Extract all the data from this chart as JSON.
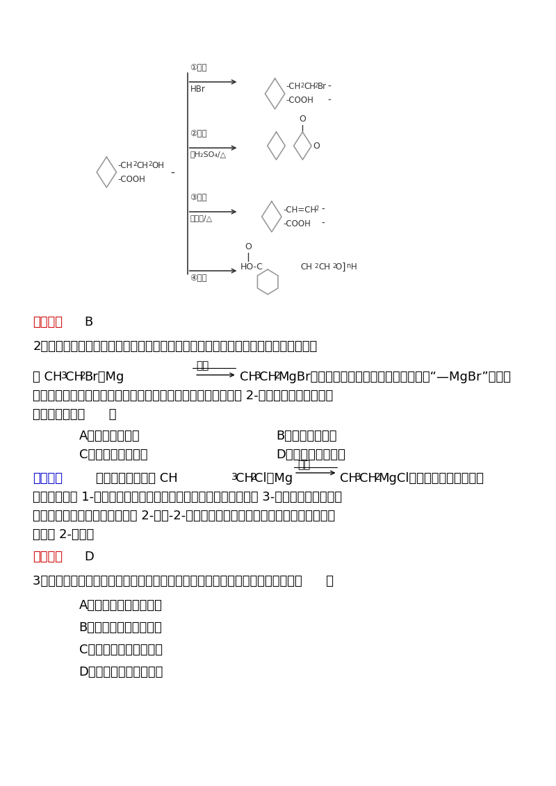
{
  "bg_color": "#ffffff",
  "text_color": "#000000",
  "red_color": "#cc0000",
  "blue_color": "#0000cc",
  "page_width": 8.0,
  "page_height": 11.32,
  "answer1_text": "B",
  "answer2_text": "D",
  "q2_line1": "2．格林尼亚试剂简称「格氏试剂」，它是卤代烃与金属镁在无水乙醚中作用得到的，",
  "q2_line3": "到灰基的氧上，所得产物经水解可得醇。今欲通过上述反应合成 2-丙醇，选用的有机原料",
  "q2_line4": "正确的一组是（      ）",
  "optA": "A．氯乙烷和甲醓",
  "optB": "B．氯乙烷和丙醓",
  "optC": "C．一氯甲烷和丙酮",
  "optD": "D．一氯甲烷和乙醓",
  "ana_label": "【解析】",
  "ana_line2": "应水解后生成 1-丙醇；氯乙烷和丙醓发生上述一系列反应后会生成 3-戊醇；一氯甲烷和丙",
  "ana_line3": "酮发生上述一系列反应后会生成 2-甲基-2-丙醇；一氯甲烷和乙醓发生上述一系列反应后",
  "ana_line4": "会生成 2-丙醇。",
  "q3_line1": "3．如果以乙烯为原料，经过两步反应制得乙二醇，则这两步反应的类型依次是（      ）",
  "q3_optA": "A．加成反应、取代反应",
  "q3_optB": "B．加成反应、消去反应",
  "q3_optC": "C．取代反应、消去反应",
  "q3_optD": "D．取代反应、加成反应"
}
